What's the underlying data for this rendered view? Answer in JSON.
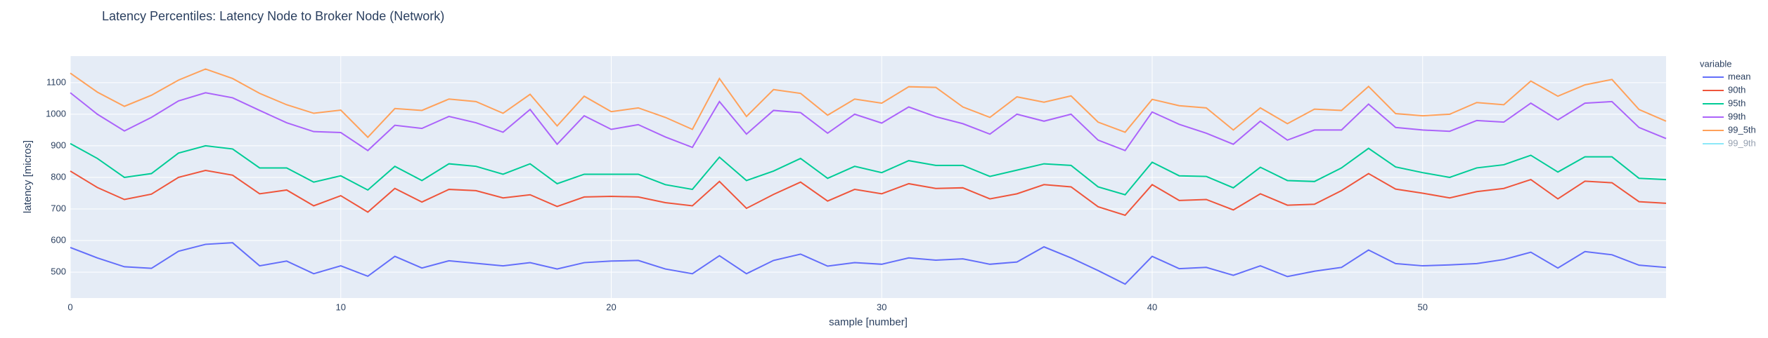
{
  "chart_data": {
    "type": "line",
    "title": "Latency Percentiles: Latency Node to Broker Node (Network)",
    "xlabel": "sample [number]",
    "ylabel": "latency [micros]",
    "legend_title": "variable",
    "x": [
      0,
      1,
      2,
      3,
      4,
      5,
      6,
      7,
      8,
      9,
      10,
      11,
      12,
      13,
      14,
      15,
      16,
      17,
      18,
      19,
      20,
      21,
      22,
      23,
      24,
      25,
      26,
      27,
      28,
      29,
      30,
      31,
      32,
      33,
      34,
      35,
      36,
      37,
      38,
      39,
      40,
      41,
      42,
      43,
      44,
      45,
      46,
      47,
      48,
      49,
      50,
      51,
      52,
      53,
      54,
      55,
      56,
      57,
      58,
      59
    ],
    "xlim": [
      0,
      59
    ],
    "xticks": [
      0,
      10,
      20,
      30,
      40,
      50
    ],
    "ylim": [
      418,
      1184
    ],
    "yticks": [
      500,
      600,
      700,
      800,
      900,
      1000,
      1100
    ],
    "grid": true,
    "legend": "right",
    "series": [
      {
        "name": "mean",
        "color": "#636efa",
        "values": [
          578,
          545,
          517,
          512,
          566,
          588,
          593,
          520,
          535,
          495,
          520,
          487,
          550,
          513,
          536,
          528,
          520,
          530,
          510,
          530,
          535,
          537,
          510,
          495,
          552,
          495,
          537,
          557,
          519,
          530,
          525,
          545,
          538,
          542,
          525,
          532,
          580,
          545,
          505,
          462,
          550,
          511,
          515,
          490,
          520,
          486,
          503,
          515,
          570,
          527,
          520,
          523,
          527,
          540,
          563,
          513,
          565,
          555,
          522,
          515
        ]
      },
      {
        "name": "90th",
        "color": "#EF553B",
        "values": [
          820,
          768,
          730,
          747,
          800,
          822,
          807,
          748,
          760,
          710,
          742,
          690,
          765,
          722,
          762,
          758,
          735,
          745,
          708,
          738,
          740,
          738,
          720,
          710,
          787,
          702,
          746,
          785,
          725,
          762,
          748,
          780,
          765,
          767,
          732,
          748,
          777,
          770,
          707,
          680,
          777,
          727,
          730,
          697,
          748,
          712,
          715,
          758,
          812,
          763,
          750,
          735,
          755,
          765,
          793,
          732,
          788,
          783,
          723,
          718
        ]
      },
      {
        "name": "95th",
        "color": "#00cc96",
        "values": [
          907,
          860,
          800,
          812,
          877,
          900,
          890,
          830,
          830,
          785,
          805,
          760,
          835,
          790,
          843,
          835,
          810,
          843,
          780,
          810,
          810,
          810,
          777,
          762,
          864,
          790,
          820,
          860,
          797,
          835,
          815,
          853,
          838,
          838,
          803,
          823,
          843,
          838,
          770,
          745,
          848,
          805,
          803,
          767,
          832,
          790,
          787,
          830,
          892,
          833,
          815,
          800,
          830,
          840,
          870,
          817,
          865,
          865,
          797,
          793
        ]
      },
      {
        "name": "99th",
        "color": "#ab63fa",
        "values": [
          1068,
          1000,
          947,
          990,
          1042,
          1068,
          1052,
          1012,
          973,
          945,
          942,
          885,
          965,
          955,
          993,
          973,
          943,
          1015,
          905,
          995,
          952,
          967,
          928,
          895,
          1040,
          937,
          1012,
          1005,
          940,
          1000,
          972,
          1023,
          992,
          970,
          937,
          1000,
          978,
          1000,
          918,
          885,
          1007,
          968,
          940,
          905,
          978,
          918,
          950,
          950,
          1032,
          958,
          950,
          946,
          980,
          975,
          1035,
          982,
          1035,
          1040,
          958,
          923
        ]
      },
      {
        "name": "99_5th",
        "color": "#FFA15A",
        "values": [
          1130,
          1070,
          1025,
          1060,
          1108,
          1143,
          1113,
          1066,
          1030,
          1003,
          1013,
          927,
          1018,
          1012,
          1048,
          1040,
          1003,
          1063,
          963,
          1057,
          1008,
          1020,
          990,
          952,
          1113,
          993,
          1078,
          1066,
          997,
          1048,
          1035,
          1087,
          1085,
          1023,
          990,
          1055,
          1038,
          1058,
          975,
          943,
          1047,
          1027,
          1020,
          950,
          1020,
          970,
          1016,
          1012,
          1088,
          1002,
          995,
          1000,
          1037,
          1030,
          1105,
          1057,
          1093,
          1110,
          1015,
          978
        ]
      },
      {
        "name": "99_9th",
        "color": "#19d3f3",
        "visible": "legendonly",
        "values": [
          null,
          null,
          null,
          null,
          null,
          null,
          null,
          null,
          null,
          null,
          null,
          null,
          null,
          null,
          null,
          null,
          null,
          null,
          null,
          null,
          null,
          null,
          null,
          null,
          null,
          null,
          null,
          null,
          null,
          null,
          null,
          null,
          null,
          null,
          null,
          null,
          null,
          null,
          null,
          null,
          null,
          null,
          null,
          null,
          null,
          null,
          null,
          null,
          null,
          null,
          null,
          null,
          null,
          null,
          null,
          null,
          null,
          null,
          null,
          null
        ]
      }
    ]
  }
}
